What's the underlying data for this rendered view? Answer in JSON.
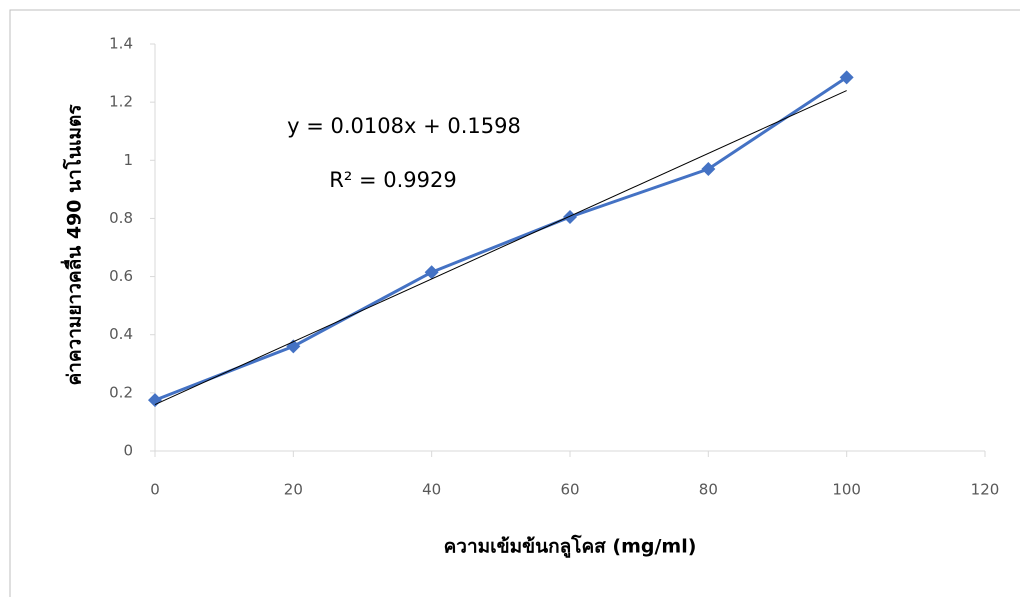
{
  "chart_data": {
    "type": "scatter-line",
    "x_label": "ความเข้มข้นกลูโคส (mg/ml)",
    "y_label": "ค่าความยาวคลื่น 490 นาโนเมตร",
    "annotations": [
      "y = 0.0108x + 0.1598",
      "R² = 0.9929"
    ],
    "x": [
      0,
      20,
      40,
      60,
      80,
      100
    ],
    "series": [
      {
        "color": "#4472c4",
        "values": [
          0.175,
          0.36,
          0.615,
          0.805,
          0.97,
          1.285
        ]
      }
    ],
    "trendline": {
      "color": "#000000",
      "x": [
        0,
        100
      ],
      "values": [
        0.1598,
        1.2398
      ]
    },
    "xlim": [
      0,
      120
    ],
    "xticks": [
      0,
      20,
      40,
      60,
      80,
      100,
      120
    ],
    "ylim": [
      0,
      1.4
    ],
    "yticks": [
      0,
      0.2,
      0.4,
      0.6,
      0.8,
      1,
      1.2,
      1.4
    ]
  }
}
